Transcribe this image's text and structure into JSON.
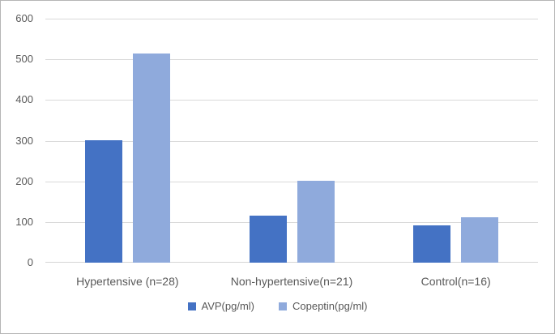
{
  "chart_data": {
    "type": "bar",
    "title": "",
    "xlabel": "",
    "ylabel": "",
    "categories": [
      "Hypertensive (n=28)",
      "Non-hypertensive(n=21)",
      "Control(n=16)"
    ],
    "series": [
      {
        "name": "AVP(pg/ml)",
        "color": "#4472C4",
        "values": [
          301,
          115,
          92
        ]
      },
      {
        "name": "Copeptin(pg/ml)",
        "color": "#8FAADC",
        "values": [
          515,
          201,
          112
        ]
      }
    ],
    "ylim": [
      0,
      600
    ],
    "yticks": [
      0,
      100,
      200,
      300,
      400,
      500,
      600
    ],
    "grid": true,
    "legend_position": "bottom"
  },
  "colors": {
    "background": "#ffffff",
    "border": "#b5b5b5",
    "gridline": "#d9d9d9",
    "axis_text": "#595959"
  }
}
